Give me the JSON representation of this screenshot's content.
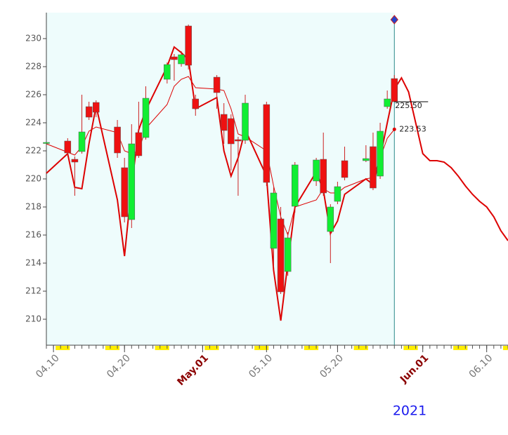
{
  "chart_data": {
    "type": "candlestick",
    "year": "2021",
    "x": [
      "04.09",
      "04.12",
      "04.13",
      "04.14",
      "04.15",
      "04.16",
      "04.19",
      "04.20",
      "04.21",
      "04.22",
      "04.23",
      "04.26",
      "04.27",
      "04.28",
      "04.29",
      "04.30",
      "05.03",
      "05.04",
      "05.05",
      "05.06",
      "05.07",
      "05.10",
      "05.11",
      "05.12",
      "05.13",
      "05.14",
      "05.17",
      "05.18",
      "05.19",
      "05.20",
      "05.21",
      "05.24",
      "05.25",
      "05.26",
      "05.27",
      "05.28"
    ],
    "open": [
      222.6,
      222.7,
      221.4,
      221.95,
      225.15,
      225.45,
      223.7,
      220.8,
      217.1,
      223.3,
      222.95,
      227.1,
      228.7,
      228.2,
      230.9,
      225.7,
      227.25,
      224.6,
      224.3,
      222.8,
      222.75,
      225.3,
      215.05,
      217.15,
      213.4,
      218.05,
      219.85,
      221.4,
      216.25,
      218.4,
      221.3,
      221.3,
      222.3,
      220.2,
      225.15,
      227.15
    ],
    "high": [
      222.6,
      222.9,
      221.6,
      226.0,
      225.5,
      225.6,
      224.2,
      221.5,
      223.9,
      225.5,
      226.6,
      228.3,
      228.9,
      229.1,
      231.0,
      226.0,
      227.4,
      225.4,
      224.6,
      223.0,
      226.0,
      225.5,
      219.4,
      218.0,
      216.2,
      221.2,
      221.5,
      223.3,
      218.2,
      219.8,
      222.3,
      222.4,
      223.3,
      224.0,
      226.3,
      227.4
    ],
    "low": [
      222.6,
      221.6,
      218.8,
      221.8,
      224.2,
      224.4,
      221.5,
      216.9,
      216.5,
      221.5,
      222.8,
      226.8,
      227.0,
      228.0,
      227.8,
      224.5,
      225.0,
      222.5,
      220.6,
      218.8,
      222.5,
      219.5,
      213.7,
      211.8,
      213.1,
      217.6,
      219.5,
      218.8,
      214.0,
      218.2,
      219.9,
      221.2,
      219.2,
      220.0,
      225.0,
      225.5
    ],
    "close": [
      222.6,
      221.85,
      221.2,
      223.35,
      224.4,
      224.75,
      221.85,
      217.3,
      222.5,
      221.65,
      225.75,
      228.15,
      228.5,
      228.85,
      228.1,
      225.0,
      226.15,
      223.45,
      222.5,
      222.7,
      225.4,
      219.75,
      219.0,
      211.95,
      215.8,
      221.0,
      221.35,
      219.0,
      218.0,
      219.45,
      220.1,
      221.45,
      219.35,
      223.4,
      225.7,
      225.5
    ],
    "up_color": "#11ee33",
    "down_color": "#ee1111",
    "lines": [
      {
        "color": "#dd0000",
        "width": 1,
        "x": [
          "04.09",
          "04.12",
          "04.13",
          "04.14",
          "04.15",
          "04.16",
          "04.19",
          "04.20",
          "04.21",
          "04.22",
          "04.23",
          "04.26",
          "04.27",
          "04.28",
          "04.29",
          "04.30",
          "05.03",
          "05.04",
          "05.05",
          "05.06",
          "05.07",
          "05.10",
          "05.11",
          "05.12",
          "05.13",
          "05.14",
          "05.17",
          "05.18",
          "05.19",
          "05.20",
          "05.21",
          "05.24",
          "05.25",
          "05.26",
          "05.27",
          "05.28"
        ],
        "values": [
          222.5,
          221.9,
          221.7,
          222.3,
          223.4,
          223.7,
          223.3,
          222.0,
          221.8,
          222.0,
          223.6,
          225.3,
          226.6,
          227.1,
          227.3,
          226.5,
          226.4,
          226.3,
          225.0,
          223.2,
          223.0,
          222.0,
          219.5,
          217.3,
          216.0,
          218.0,
          218.5,
          219.3,
          219.0,
          219.0,
          219.4,
          220.0,
          220.1,
          221.5,
          222.9,
          223.53
        ]
      },
      {
        "color": "#dd0000",
        "width": 2,
        "x": [
          "04.09",
          "04.12",
          "04.13",
          "04.14",
          "04.15",
          "04.16",
          "04.19",
          "04.20",
          "04.21",
          "04.22",
          "04.23",
          "04.26",
          "04.27",
          "04.28",
          "04.29",
          "04.30",
          "05.03",
          "05.04",
          "05.05",
          "05.06",
          "05.07",
          "05.10",
          "05.11",
          "05.12",
          "05.13",
          "05.14",
          "05.17",
          "05.18",
          "05.19",
          "05.20",
          "05.21",
          "05.24",
          "05.25",
          "05.26",
          "05.27",
          "05.28",
          "05.29",
          "05.30",
          "05.31",
          "06.01",
          "06.02",
          "06.03",
          "06.04",
          "06.05",
          "06.06",
          "06.07",
          "06.08",
          "06.09",
          "06.10",
          "06.11",
          "06.12",
          "06.13"
        ],
        "values": [
          220.4,
          221.8,
          219.4,
          219.3,
          222.5,
          225.2,
          218.5,
          214.5,
          219.5,
          223.5,
          224.9,
          228.0,
          229.4,
          229.0,
          228.5,
          225.0,
          225.8,
          222.0,
          220.2,
          221.5,
          223.5,
          220.2,
          213.5,
          209.9,
          214.0,
          218.0,
          220.5,
          219.2,
          216.1,
          217.0,
          218.9,
          220.0,
          219.6,
          221.5,
          224.0,
          226.4,
          227.2,
          226.2,
          224.0,
          221.8,
          221.3,
          221.3,
          221.2,
          220.8,
          220.2,
          219.5,
          218.9,
          218.4,
          218.0,
          217.3,
          216.3,
          215.6
        ]
      }
    ],
    "annotations": [
      {
        "text": "225.50",
        "value": 225.5
      },
      {
        "text": "223.53",
        "value": 223.53
      }
    ],
    "xlim": [
      "04.09",
      "06.13"
    ],
    "xticks": [
      "04.10",
      "04.20",
      {
        "value": "05.01",
        "label": "May.01"
      },
      "05.10",
      "05.20",
      {
        "value": "06.01",
        "label": "Jun.01"
      },
      "06.10"
    ],
    "ylim": [
      208.15,
      231.85
    ],
    "yticks": [
      210,
      212,
      214,
      216,
      218,
      220,
      222,
      224,
      226,
      228,
      230
    ]
  }
}
